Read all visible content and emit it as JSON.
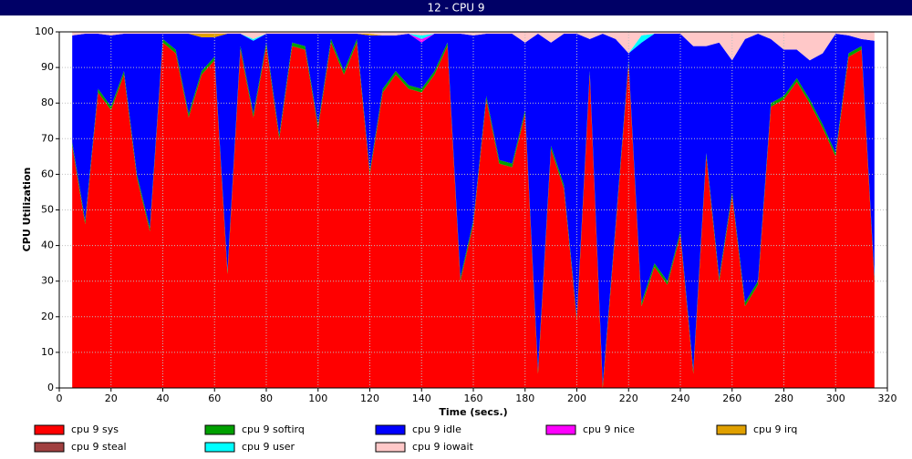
{
  "chart_data": {
    "type": "stacked_area",
    "title": "12 - CPU 9",
    "x_label": "Time (secs.)",
    "y_label": "CPU Utilization",
    "x": [
      5,
      10,
      15,
      20,
      25,
      30,
      35,
      40,
      45,
      50,
      55,
      60,
      65,
      70,
      75,
      80,
      85,
      90,
      95,
      100,
      105,
      110,
      115,
      120,
      125,
      130,
      135,
      140,
      145,
      150,
      155,
      160,
      165,
      170,
      175,
      180,
      185,
      190,
      195,
      200,
      205,
      210,
      215,
      220,
      225,
      230,
      235,
      240,
      245,
      250,
      255,
      260,
      265,
      270,
      275,
      280,
      285,
      290,
      295,
      300,
      305,
      310,
      315
    ],
    "xlim": [
      0,
      320
    ],
    "xticks": [
      0,
      20,
      40,
      60,
      80,
      100,
      120,
      140,
      160,
      180,
      200,
      220,
      240,
      260,
      280,
      300,
      320
    ],
    "ylim": [
      0,
      100
    ],
    "yticks": [
      0,
      10,
      20,
      30,
      40,
      50,
      60,
      70,
      80,
      90,
      100
    ],
    "grid": true,
    "series": [
      {
        "name": "cpu 9 sys",
        "color": "#ff0000",
        "values": [
          68,
          46,
          83,
          78,
          88,
          59,
          44,
          97,
          94,
          76,
          88,
          92,
          32,
          95,
          76,
          96,
          70,
          96,
          95,
          73,
          97,
          88,
          97,
          60,
          83,
          88,
          84,
          83,
          88,
          96,
          30,
          46,
          81,
          63,
          62,
          77,
          4,
          67,
          56,
          19,
          88,
          0,
          45,
          91,
          23,
          34,
          29,
          43,
          4,
          65,
          30,
          54,
          23,
          29,
          79,
          81,
          86,
          80,
          73,
          65,
          93,
          95,
          30
        ]
      },
      {
        "name": "cpu 9 softirq",
        "color": "#00a000",
        "values": [
          1,
          1,
          1,
          1,
          1,
          1,
          1,
          1,
          1,
          1,
          1,
          1,
          1,
          1,
          1,
          1,
          1,
          1,
          1,
          1,
          1,
          1,
          1,
          1,
          1,
          1,
          1,
          1,
          1,
          1,
          1,
          1,
          1,
          1,
          1,
          1,
          1,
          1,
          1,
          1,
          1,
          1,
          1,
          1,
          1,
          1,
          1,
          1,
          1,
          1,
          1,
          1,
          1,
          1,
          1,
          1,
          1,
          1,
          1,
          1,
          1,
          1,
          1
        ]
      },
      {
        "name": "cpu 9 idle",
        "color": "#0000ff",
        "values": [
          30,
          52.5,
          15.5,
          20,
          10.5,
          39.5,
          54.5,
          1.5,
          4.5,
          22.5,
          9.5,
          5.5,
          66.5,
          3.5,
          20.5,
          2.5,
          28.5,
          2.5,
          3.5,
          25.5,
          1.5,
          10.5,
          1.5,
          38,
          15,
          10,
          14.5,
          13,
          10.5,
          2.5,
          68.5,
          52,
          17.5,
          35.5,
          36.5,
          19,
          94.5,
          29,
          42.5,
          79.5,
          9,
          98.5,
          52,
          2,
          73,
          64.5,
          69.5,
          55.5,
          91,
          30,
          66,
          37,
          74,
          69.5,
          18,
          13,
          8,
          11,
          20,
          33.5,
          5,
          2,
          66.5
        ]
      },
      {
        "name": "cpu 9 nice",
        "color": "#ff00ff",
        "values": [
          0,
          0,
          0,
          0,
          0,
          0,
          0,
          0,
          0,
          0,
          0,
          0,
          0,
          0,
          0,
          0,
          0,
          0,
          0,
          0,
          0,
          0,
          0,
          0,
          0,
          0,
          0,
          1,
          0,
          0,
          0,
          0,
          0,
          0,
          0,
          0,
          0,
          0,
          0,
          0,
          0,
          0,
          0,
          0,
          0,
          0,
          0,
          0,
          0,
          0,
          0,
          0,
          0,
          0,
          0,
          0,
          0,
          0,
          0,
          0,
          0,
          0,
          0
        ]
      },
      {
        "name": "cpu 9 irq",
        "color": "#e0a000",
        "values": [
          0,
          0,
          0,
          0,
          0,
          0,
          0,
          0,
          0,
          0,
          1,
          1,
          0,
          0,
          0,
          0,
          0,
          0,
          0,
          0,
          0,
          0,
          0,
          0.5,
          0,
          0,
          0,
          0,
          0,
          0,
          0,
          0,
          0,
          0,
          0,
          0,
          0,
          0,
          0,
          0,
          0,
          0,
          0,
          0,
          0,
          0,
          0,
          0,
          0,
          0,
          0,
          0,
          0,
          0,
          0,
          0,
          0,
          0,
          0,
          0,
          0,
          0,
          0
        ]
      },
      {
        "name": "cpu 9 steal",
        "color": "#a04040",
        "values": [
          0,
          0,
          0,
          0,
          0,
          0,
          0,
          0,
          0,
          0,
          0,
          0,
          0,
          0,
          0,
          0,
          0,
          0,
          0,
          0,
          0,
          0,
          0,
          0,
          0,
          0,
          0,
          0,
          0,
          0,
          0,
          0,
          0,
          0,
          0,
          0,
          0,
          0,
          0,
          0,
          0,
          0,
          0,
          0,
          0,
          0,
          0,
          0,
          0,
          0,
          0,
          0,
          0,
          0,
          0,
          0,
          0,
          0,
          0,
          0,
          0,
          0,
          0
        ]
      },
      {
        "name": "cpu 9 user",
        "color": "#00ffff",
        "values": [
          0,
          0,
          0,
          0,
          0,
          0,
          0,
          0,
          0,
          0,
          0,
          0,
          0,
          0,
          0.5,
          0,
          0,
          0,
          0,
          0,
          0,
          0,
          0,
          0,
          0,
          0,
          0,
          1,
          0,
          0,
          0,
          0,
          0,
          0,
          0,
          0,
          0,
          0,
          0,
          0,
          0,
          0,
          0,
          0,
          2,
          0,
          0,
          0,
          0,
          0,
          0,
          0,
          0,
          0,
          0,
          0,
          0,
          0,
          0,
          0,
          0,
          0,
          0
        ]
      },
      {
        "name": "cpu 9 iowait",
        "color": "#ffc8c8",
        "values": [
          1,
          0.5,
          0.5,
          1,
          0.5,
          0.5,
          0.5,
          0.5,
          0.5,
          0.5,
          0.5,
          0.5,
          0.5,
          0.5,
          2,
          0.5,
          0.5,
          0.5,
          0.5,
          0.5,
          0.5,
          0.5,
          0.5,
          0.5,
          1,
          1,
          0.5,
          1,
          0.5,
          0.5,
          0.5,
          1,
          0.5,
          0.5,
          0.5,
          3,
          0.5,
          3,
          0.5,
          0.5,
          2,
          0.5,
          2,
          6,
          1,
          0.5,
          0.5,
          0.5,
          4,
          4,
          3,
          8,
          2,
          0.5,
          2,
          5,
          5,
          8,
          6,
          0.5,
          1,
          2,
          2.5
        ]
      }
    ]
  }
}
